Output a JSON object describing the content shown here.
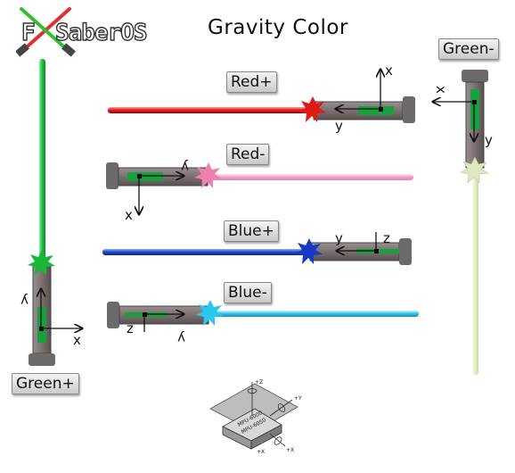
{
  "title": "Gravity Color",
  "logo": {
    "text": "SaberOS",
    "letter": "F"
  },
  "labels": {
    "red_plus": "Red+",
    "red_minus": "Red-",
    "blue_plus": "Blue+",
    "blue_minus": "Blue-",
    "green_plus": "Green+",
    "green_minus": "Green-"
  },
  "axes": {
    "red_plus": [
      "x",
      "y"
    ],
    "red_minus": [
      "y",
      "x"
    ],
    "blue_plus": [
      "z",
      "y"
    ],
    "blue_minus": [
      "z",
      "y"
    ],
    "green_plus": [
      "y",
      "x"
    ],
    "green_minus": [
      "x",
      "y"
    ]
  },
  "chip": {
    "line1": "MPU-6000",
    "line2": "MPU-6050",
    "axes": [
      "+Z",
      "+Y",
      "+X"
    ]
  },
  "colors": {
    "red": "#e53030",
    "pink": "#f0a8c8",
    "blue": "#2050c0",
    "cyan": "#30c0e8",
    "green": "#20c040",
    "pale_green": "#e4f0c8",
    "hilt": "#7a7070",
    "pommel": "#6a6a6a",
    "pcb": "#18a040"
  }
}
